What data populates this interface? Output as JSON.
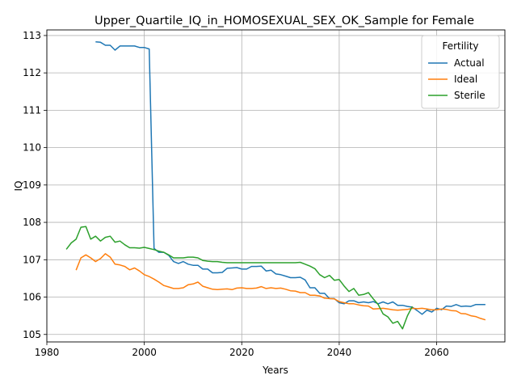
{
  "chart_data": {
    "type": "line",
    "title": "Upper_Quartile_IQ_in_HOMOSEXUAL_SEX_OK_Sample for Female",
    "xlabel": "Years",
    "ylabel": "IQ",
    "xlim": [
      1980,
      2074
    ],
    "ylim": [
      104.8,
      113.15
    ],
    "xticks": [
      1980,
      2000,
      2020,
      2040,
      2060
    ],
    "yticks": [
      105,
      106,
      107,
      108,
      109,
      110,
      111,
      112,
      113
    ],
    "grid": true,
    "legend": {
      "title": "Fertility",
      "placement": "top-right"
    },
    "series": [
      {
        "name": "Actual",
        "color": "#1f77b4",
        "x": [
          1990,
          1991,
          1992,
          1993,
          1994,
          1995,
          1996,
          1997,
          1998,
          1999,
          2000,
          2001,
          2002,
          2003,
          2004,
          2005,
          2006,
          2007,
          2008,
          2009,
          2010,
          2011,
          2012,
          2013,
          2014,
          2015,
          2016,
          2017,
          2018,
          2019,
          2020,
          2021,
          2022,
          2023,
          2024,
          2025,
          2026,
          2027,
          2028,
          2029,
          2030,
          2031,
          2032,
          2033,
          2034,
          2035,
          2036,
          2037,
          2038,
          2039,
          2040,
          2041,
          2042,
          2043,
          2044,
          2045,
          2046,
          2047,
          2048,
          2049,
          2050,
          2051,
          2052,
          2053,
          2054,
          2055,
          2056,
          2057,
          2058,
          2059,
          2060,
          2061,
          2062,
          2063,
          2064,
          2065,
          2066,
          2067,
          2068,
          2069,
          2070
        ],
        "values": [
          112.83,
          112.82,
          112.74,
          112.74,
          112.61,
          112.72,
          112.72,
          112.72,
          112.72,
          112.68,
          112.68,
          112.64,
          107.3,
          107.2,
          107.2,
          107.12,
          106.95,
          106.9,
          106.95,
          106.88,
          106.85,
          106.85,
          106.75,
          106.75,
          106.65,
          106.65,
          106.66,
          106.77,
          106.78,
          106.79,
          106.75,
          106.75,
          106.82,
          106.82,
          106.83,
          106.7,
          106.72,
          106.62,
          106.6,
          106.56,
          106.52,
          106.52,
          106.53,
          106.46,
          106.25,
          106.25,
          106.1,
          106.1,
          105.96,
          105.96,
          105.85,
          105.82,
          105.9,
          105.9,
          105.85,
          105.87,
          105.85,
          105.88,
          105.82,
          105.87,
          105.82,
          105.87,
          105.78,
          105.78,
          105.75,
          105.73,
          105.64,
          105.54,
          105.65,
          105.6,
          105.7,
          105.66,
          105.76,
          105.75,
          105.8,
          105.75,
          105.76,
          105.75,
          105.8,
          105.8,
          105.8
        ]
      },
      {
        "name": "Ideal",
        "color": "#ff7f0e",
        "x": [
          1986,
          1987,
          1988,
          1989,
          1990,
          1991,
          1992,
          1993,
          1994,
          1995,
          1996,
          1997,
          1998,
          1999,
          2000,
          2001,
          2002,
          2003,
          2004,
          2005,
          2006,
          2007,
          2008,
          2009,
          2010,
          2011,
          2012,
          2013,
          2014,
          2015,
          2016,
          2017,
          2018,
          2019,
          2020,
          2021,
          2022,
          2023,
          2024,
          2025,
          2026,
          2027,
          2028,
          2029,
          2030,
          2031,
          2032,
          2033,
          2034,
          2035,
          2036,
          2037,
          2038,
          2039,
          2040,
          2041,
          2042,
          2043,
          2044,
          2045,
          2046,
          2047,
          2048,
          2049,
          2050,
          2051,
          2052,
          2053,
          2054,
          2055,
          2056,
          2057,
          2058,
          2059,
          2060,
          2061,
          2062,
          2063,
          2064,
          2065,
          2066,
          2067,
          2068,
          2069,
          2070
        ],
        "values": [
          106.72,
          107.05,
          107.13,
          107.05,
          106.95,
          107.03,
          107.16,
          107.07,
          106.88,
          106.86,
          106.82,
          106.73,
          106.78,
          106.7,
          106.6,
          106.55,
          106.48,
          106.4,
          106.31,
          106.27,
          106.23,
          106.23,
          106.25,
          106.33,
          106.35,
          106.4,
          106.29,
          106.25,
          106.21,
          106.2,
          106.21,
          106.22,
          106.2,
          106.24,
          106.25,
          106.23,
          106.23,
          106.24,
          106.28,
          106.23,
          106.25,
          106.23,
          106.24,
          106.21,
          106.17,
          106.16,
          106.12,
          106.12,
          106.05,
          106.05,
          106.03,
          105.97,
          105.96,
          105.95,
          105.88,
          105.85,
          105.82,
          105.82,
          105.79,
          105.77,
          105.76,
          105.68,
          105.69,
          105.7,
          105.68,
          105.66,
          105.65,
          105.66,
          105.67,
          105.7,
          105.69,
          105.7,
          105.68,
          105.66,
          105.66,
          105.68,
          105.67,
          105.64,
          105.63,
          105.56,
          105.55,
          105.5,
          105.48,
          105.43,
          105.39
        ]
      },
      {
        "name": "Sterile",
        "color": "#2ca02c",
        "x": [
          1984,
          1985,
          1986,
          1987,
          1988,
          1989,
          1990,
          1991,
          1992,
          1993,
          1994,
          1995,
          1996,
          1997,
          1998,
          1999,
          2000,
          2001,
          2002,
          2003,
          2004,
          2005,
          2006,
          2007,
          2008,
          2009,
          2010,
          2011,
          2012,
          2013,
          2014,
          2015,
          2016,
          2017,
          2018,
          2019,
          2020,
          2021,
          2022,
          2023,
          2024,
          2025,
          2026,
          2027,
          2028,
          2029,
          2030,
          2031,
          2032,
          2033,
          2034,
          2035,
          2036,
          2037,
          2038,
          2039,
          2040,
          2041,
          2042,
          2043,
          2044,
          2045,
          2046,
          2047,
          2048,
          2049,
          2050,
          2051,
          2052,
          2053,
          2054,
          2055
        ],
        "values": [
          107.28,
          107.45,
          107.55,
          107.87,
          107.89,
          107.55,
          107.63,
          107.5,
          107.6,
          107.63,
          107.47,
          107.5,
          107.4,
          107.32,
          107.32,
          107.31,
          107.33,
          107.3,
          107.27,
          107.23,
          107.2,
          107.13,
          107.05,
          107.05,
          107.05,
          107.07,
          107.07,
          107.05,
          106.98,
          106.96,
          106.95,
          106.95,
          106.93,
          106.92,
          106.92,
          106.92,
          106.92,
          106.92,
          106.92,
          106.92,
          106.92,
          106.92,
          106.92,
          106.92,
          106.92,
          106.92,
          106.92,
          106.92,
          106.93,
          106.88,
          106.83,
          106.76,
          106.6,
          106.52,
          106.58,
          106.45,
          106.47,
          106.3,
          106.15,
          106.23,
          106.05,
          106.07,
          106.12,
          105.95,
          105.8,
          105.55,
          105.47,
          105.3,
          105.35,
          105.15,
          105.5,
          105.75
        ]
      }
    ]
  }
}
